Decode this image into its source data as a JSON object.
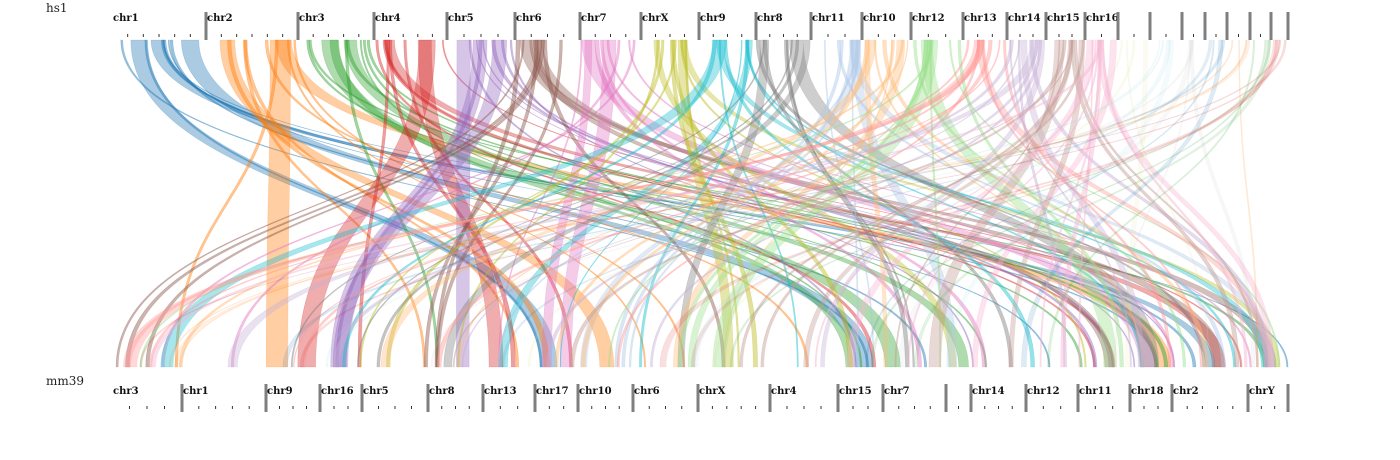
{
  "genomes": {
    "top": {
      "name": "hs1",
      "chromosomes": [
        "chr1",
        "chr2",
        "chr3",
        "chr4",
        "chr5",
        "chr6",
        "chr7",
        "chrX",
        "chr9",
        "chr8",
        "chr11",
        "chr10",
        "chr12",
        "chr13",
        "chr14",
        "chr15",
        "chr16",
        "",
        "",
        "",
        "",
        "",
        "",
        ""
      ]
    },
    "bottom": {
      "name": "mm39",
      "chromosomes": [
        "chr3",
        "chr1",
        "chr9",
        "chr16",
        "chr5",
        "chr8",
        "chr13",
        "chr17",
        "chr10",
        "chr6",
        "chrX",
        "chr4",
        "chr15",
        "chr7",
        "",
        "chr14",
        "chr12",
        "chr11",
        "chr18",
        "chr2",
        "chrY"
      ]
    }
  },
  "colors": {
    "palette": [
      "#1f77b4",
      "#ff7f0e",
      "#2ca02c",
      "#d62728",
      "#9467bd",
      "#8c564b",
      "#e377c2",
      "#bcbd22",
      "#17becf",
      "#7f7f7f",
      "#aec7e8",
      "#ffbb78",
      "#98df8a",
      "#ff9896",
      "#c5b0d5",
      "#c49c94",
      "#f7b6d2",
      "#dbdb8d",
      "#9edae5",
      "#c7c7c7"
    ],
    "axis": "#7f7f7f"
  }
}
